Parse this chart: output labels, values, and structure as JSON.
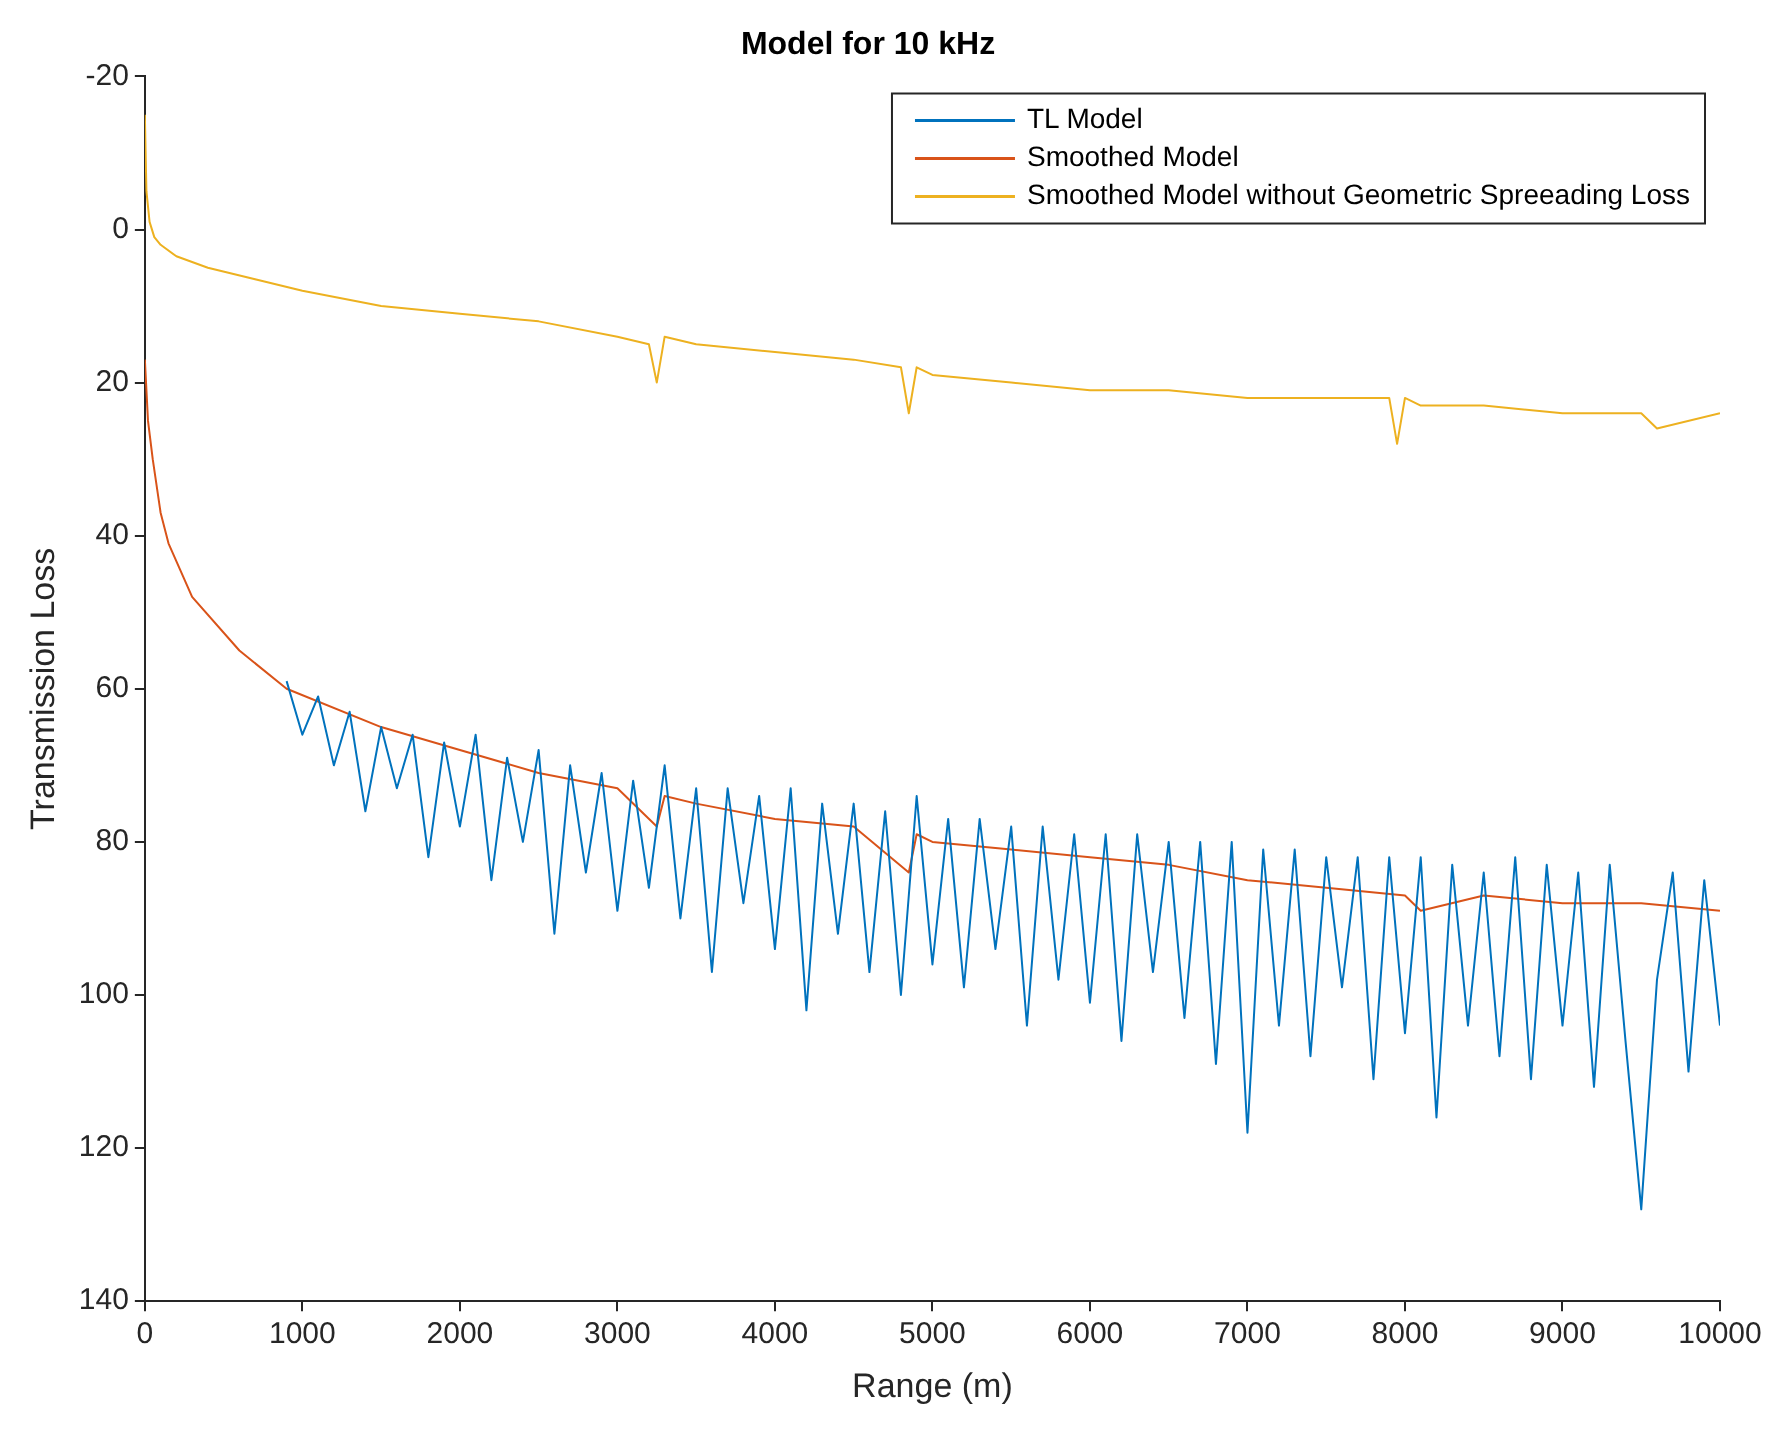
{
  "chart_data": {
    "type": "line",
    "title": "Model for 10 kHz",
    "xlabel": "Range (m)",
    "ylabel": "Transmission Loss",
    "xlim": [
      0,
      10000
    ],
    "xticks": [
      0,
      1000,
      2000,
      3000,
      4000,
      5000,
      6000,
      7000,
      8000,
      9000,
      10000
    ],
    "ylim": [
      140,
      -20
    ],
    "yticks": [
      -20,
      0,
      20,
      40,
      60,
      80,
      100,
      120,
      140
    ],
    "grid": false,
    "legend": "top right",
    "marker": "none",
    "line_style": "solid",
    "series": [
      {
        "name": "TL Model",
        "color": "#0072bd",
        "x": [
          900,
          1000,
          1100,
          1200,
          1300,
          1400,
          1500,
          1600,
          1700,
          1800,
          1900,
          2000,
          2100,
          2200,
          2300,
          2400,
          2500,
          2600,
          2700,
          2800,
          2900,
          3000,
          3100,
          3200,
          3300,
          3400,
          3500,
          3600,
          3700,
          3800,
          3900,
          4000,
          4100,
          4200,
          4300,
          4400,
          4500,
          4600,
          4700,
          4800,
          4900,
          5000,
          5100,
          5200,
          5300,
          5400,
          5500,
          5600,
          5700,
          5800,
          5900,
          6000,
          6100,
          6200,
          6300,
          6400,
          6500,
          6600,
          6700,
          6800,
          6900,
          7000,
          7100,
          7200,
          7300,
          7400,
          7500,
          7600,
          7700,
          7800,
          7900,
          8000,
          8100,
          8200,
          8300,
          8400,
          8500,
          8600,
          8700,
          8800,
          8900,
          9000,
          9100,
          9200,
          9300,
          9400,
          9500,
          9600,
          9700,
          9800,
          9900,
          10000
        ],
        "values": [
          59,
          66,
          61,
          70,
          63,
          76,
          65,
          73,
          66,
          82,
          67,
          78,
          66,
          85,
          69,
          80,
          68,
          92,
          70,
          84,
          71,
          89,
          72,
          86,
          70,
          90,
          73,
          97,
          73,
          88,
          74,
          94,
          73,
          102,
          75,
          92,
          75,
          97,
          76,
          100,
          74,
          96,
          77,
          99,
          77,
          94,
          78,
          104,
          78,
          98,
          79,
          101,
          79,
          106,
          79,
          97,
          80,
          103,
          80,
          109,
          80,
          118,
          81,
          104,
          81,
          108,
          82,
          99,
          82,
          111,
          82,
          105,
          82,
          116,
          83,
          104,
          84,
          108,
          82,
          111,
          83,
          104,
          84,
          112,
          83,
          106,
          128,
          98,
          84,
          110,
          85,
          104
        ]
      },
      {
        "name": "Smoothed Model",
        "color": "#d95319",
        "x": [
          0,
          20,
          50,
          100,
          150,
          300,
          600,
          900,
          1500,
          2000,
          2500,
          3000,
          3250,
          3300,
          3500,
          4000,
          4500,
          4850,
          4900,
          5000,
          5500,
          6000,
          6500,
          7000,
          7500,
          8000,
          8100,
          8500,
          9000,
          9500,
          10000
        ],
        "values": [
          17,
          25,
          30,
          37,
          41,
          48,
          55,
          60,
          65,
          68,
          71,
          73,
          78,
          74,
          75,
          77,
          78,
          84,
          79,
          80,
          81,
          82,
          83,
          85,
          86,
          87,
          89,
          87,
          88,
          88,
          89
        ]
      },
      {
        "name": "Smoothed Model without Geometric Spreeading Loss",
        "color": "#edb120",
        "x": [
          0,
          10,
          30,
          60,
          100,
          200,
          400,
          700,
          1000,
          1500,
          2000,
          2500,
          3000,
          3200,
          3250,
          3300,
          3500,
          4000,
          4500,
          4800,
          4850,
          4900,
          5000,
          5500,
          6000,
          6500,
          7000,
          7500,
          7900,
          7950,
          8000,
          8100,
          8500,
          9000,
          9500,
          9600,
          10000
        ],
        "values": [
          -15,
          -5,
          -1,
          1,
          2,
          3.5,
          5,
          6.5,
          8,
          10,
          11,
          12,
          14,
          15,
          20,
          14,
          15,
          16,
          17,
          18,
          24,
          18,
          19,
          20,
          21,
          21,
          22,
          22,
          22,
          28,
          22,
          23,
          23,
          24,
          24,
          26,
          24
        ]
      }
    ]
  }
}
